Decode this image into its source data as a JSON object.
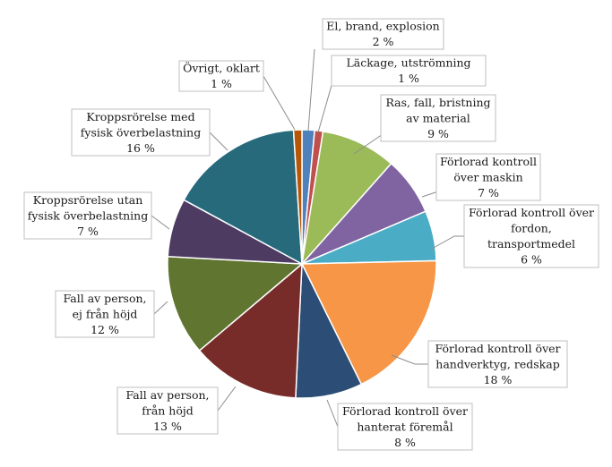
{
  "chart_data": {
    "type": "pie",
    "title": "",
    "start_angle_deg": 0,
    "direction": "clockwise",
    "legend": "none",
    "slices": [
      {
        "lines": [
          "El, brand, explosion"
        ],
        "value": 1.5,
        "display": "2 %",
        "color": "#4f81bd"
      },
      {
        "lines": [
          "Läckage, utströmning"
        ],
        "value": 1,
        "display": "1 %",
        "color": "#c0504d"
      },
      {
        "lines": [
          "Ras, fall, bristning",
          "av material"
        ],
        "value": 9,
        "display": "9 %",
        "color": "#9bbb59"
      },
      {
        "lines": [
          "Förlorad kontroll",
          "över maskin"
        ],
        "value": 7,
        "display": "7 %",
        "color": "#8064a2"
      },
      {
        "lines": [
          "Förlorad kontroll över",
          "fordon,",
          "transportmedel"
        ],
        "value": 6,
        "display": "6 %",
        "color": "#4bacc6"
      },
      {
        "lines": [
          "Förlorad kontroll över",
          "handverktyg, redskap"
        ],
        "value": 18,
        "display": "18 %",
        "color": "#f79646"
      },
      {
        "lines": [
          "Förlorad kontroll över",
          "hanterat föremål"
        ],
        "value": 8,
        "display": "8 %",
        "color": "#2c4d75"
      },
      {
        "lines": [
          "Fall av person,",
          "från höjd"
        ],
        "value": 13,
        "display": "13 %",
        "color": "#772c2a"
      },
      {
        "lines": [
          "Fall av person,",
          "ej från höjd"
        ],
        "value": 12,
        "display": "12 %",
        "color": "#5f7530"
      },
      {
        "lines": [
          "Kroppsrörelse utan",
          "fysisk överbelastning"
        ],
        "value": 7,
        "display": "7 %",
        "color": "#4d3b62"
      },
      {
        "lines": [
          "Kroppsrörelse med",
          "fysisk överbelastning"
        ],
        "value": 16,
        "display": "16 %",
        "color": "#276a7c"
      },
      {
        "lines": [
          "Övrigt, oklart"
        ],
        "value": 1,
        "display": "1 %",
        "color": "#b65708"
      }
    ]
  }
}
